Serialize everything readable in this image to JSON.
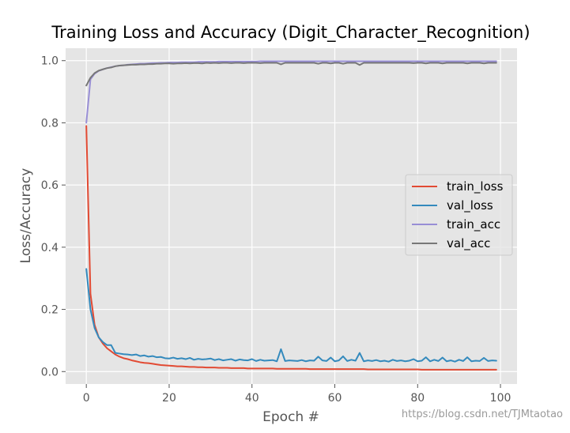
{
  "chart_data": {
    "type": "line",
    "title": "Training Loss and Accuracy (Digit_Character_Recognition)",
    "xlabel": "Epoch #",
    "ylabel": "Loss/Accuracy",
    "xlim": [
      -5,
      104
    ],
    "ylim": [
      -0.04,
      1.04
    ],
    "x_ticks": [
      0,
      20,
      40,
      60,
      80,
      100
    ],
    "y_ticks": [
      0.0,
      0.2,
      0.4,
      0.6,
      0.8,
      1.0
    ],
    "x_tick_labels": [
      "0",
      "20",
      "40",
      "60",
      "80",
      "100"
    ],
    "y_tick_labels": [
      "0.0",
      "0.2",
      "0.4",
      "0.6",
      "0.8",
      "1.0"
    ],
    "grid": true,
    "legend_position": "center-right",
    "style": {
      "background": "#e5e5e5",
      "grid": "#ffffff"
    },
    "x": [
      0,
      1,
      2,
      3,
      4,
      5,
      6,
      7,
      8,
      9,
      10,
      11,
      12,
      13,
      14,
      15,
      16,
      17,
      18,
      19,
      20,
      21,
      22,
      23,
      24,
      25,
      26,
      27,
      28,
      29,
      30,
      31,
      32,
      33,
      34,
      35,
      36,
      37,
      38,
      39,
      40,
      41,
      42,
      43,
      44,
      45,
      46,
      47,
      48,
      49,
      50,
      51,
      52,
      53,
      54,
      55,
      56,
      57,
      58,
      59,
      60,
      61,
      62,
      63,
      64,
      65,
      66,
      67,
      68,
      69,
      70,
      71,
      72,
      73,
      74,
      75,
      76,
      77,
      78,
      79,
      80,
      81,
      82,
      83,
      84,
      85,
      86,
      87,
      88,
      89,
      90,
      91,
      92,
      93,
      94,
      95,
      96,
      97,
      98,
      99
    ],
    "series": [
      {
        "name": "train_loss",
        "color": "#E24A33",
        "values": [
          0.79,
          0.25,
          0.15,
          0.11,
          0.09,
          0.075,
          0.065,
          0.055,
          0.048,
          0.043,
          0.04,
          0.036,
          0.033,
          0.03,
          0.028,
          0.027,
          0.025,
          0.023,
          0.021,
          0.02,
          0.019,
          0.018,
          0.017,
          0.017,
          0.016,
          0.015,
          0.015,
          0.014,
          0.014,
          0.013,
          0.013,
          0.013,
          0.012,
          0.012,
          0.012,
          0.011,
          0.011,
          0.011,
          0.011,
          0.01,
          0.01,
          0.01,
          0.01,
          0.01,
          0.01,
          0.01,
          0.009,
          0.009,
          0.009,
          0.009,
          0.009,
          0.009,
          0.009,
          0.009,
          0.008,
          0.008,
          0.008,
          0.008,
          0.008,
          0.008,
          0.008,
          0.008,
          0.008,
          0.008,
          0.008,
          0.008,
          0.008,
          0.008,
          0.007,
          0.007,
          0.007,
          0.007,
          0.007,
          0.007,
          0.007,
          0.007,
          0.007,
          0.007,
          0.007,
          0.007,
          0.007,
          0.006,
          0.006,
          0.006,
          0.006,
          0.006,
          0.006,
          0.006,
          0.006,
          0.006,
          0.006,
          0.006,
          0.006,
          0.006,
          0.006,
          0.006,
          0.006,
          0.006,
          0.006,
          0.006
        ]
      },
      {
        "name": "val_loss",
        "color": "#348ABD",
        "values": [
          0.33,
          0.2,
          0.14,
          0.11,
          0.095,
          0.085,
          0.085,
          0.06,
          0.058,
          0.056,
          0.055,
          0.053,
          0.055,
          0.05,
          0.052,
          0.048,
          0.05,
          0.046,
          0.047,
          0.043,
          0.042,
          0.045,
          0.041,
          0.043,
          0.04,
          0.044,
          0.038,
          0.041,
          0.039,
          0.04,
          0.042,
          0.037,
          0.04,
          0.036,
          0.038,
          0.04,
          0.035,
          0.039,
          0.037,
          0.036,
          0.04,
          0.034,
          0.038,
          0.035,
          0.036,
          0.037,
          0.033,
          0.072,
          0.034,
          0.036,
          0.035,
          0.034,
          0.037,
          0.033,
          0.036,
          0.035,
          0.048,
          0.036,
          0.034,
          0.045,
          0.033,
          0.036,
          0.049,
          0.034,
          0.038,
          0.035,
          0.06,
          0.033,
          0.036,
          0.034,
          0.037,
          0.033,
          0.035,
          0.032,
          0.038,
          0.034,
          0.036,
          0.033,
          0.035,
          0.04,
          0.033,
          0.035,
          0.046,
          0.033,
          0.038,
          0.034,
          0.045,
          0.033,
          0.036,
          0.032,
          0.038,
          0.034,
          0.046,
          0.033,
          0.035,
          0.034,
          0.044,
          0.034,
          0.036,
          0.035
        ]
      },
      {
        "name": "train_acc",
        "color": "#988ED5",
        "values": [
          0.8,
          0.94,
          0.958,
          0.967,
          0.972,
          0.976,
          0.979,
          0.982,
          0.984,
          0.985,
          0.987,
          0.988,
          0.989,
          0.99,
          0.99,
          0.991,
          0.992,
          0.992,
          0.993,
          0.993,
          0.994,
          0.994,
          0.994,
          0.995,
          0.995,
          0.995,
          0.995,
          0.996,
          0.996,
          0.996,
          0.996,
          0.996,
          0.997,
          0.997,
          0.997,
          0.997,
          0.997,
          0.997,
          0.997,
          0.997,
          0.997,
          0.997,
          0.998,
          0.998,
          0.998,
          0.998,
          0.998,
          0.998,
          0.998,
          0.998,
          0.998,
          0.998,
          0.998,
          0.998,
          0.998,
          0.998,
          0.998,
          0.998,
          0.998,
          0.998,
          0.998,
          0.998,
          0.998,
          0.998,
          0.998,
          0.998,
          0.998,
          0.998,
          0.998,
          0.998,
          0.998,
          0.998,
          0.998,
          0.998,
          0.998,
          0.998,
          0.998,
          0.998,
          0.998,
          0.998,
          0.998,
          0.998,
          0.998,
          0.998,
          0.998,
          0.998,
          0.998,
          0.998,
          0.998,
          0.998,
          0.998,
          0.998,
          0.998,
          0.998,
          0.998,
          0.998,
          0.998,
          0.998,
          0.998,
          0.998
        ]
      },
      {
        "name": "val_acc",
        "color": "#777777",
        "values": [
          0.92,
          0.945,
          0.96,
          0.968,
          0.972,
          0.976,
          0.978,
          0.982,
          0.984,
          0.985,
          0.986,
          0.987,
          0.987,
          0.988,
          0.988,
          0.989,
          0.989,
          0.99,
          0.99,
          0.991,
          0.991,
          0.99,
          0.991,
          0.991,
          0.992,
          0.991,
          0.992,
          0.992,
          0.991,
          0.993,
          0.992,
          0.993,
          0.992,
          0.993,
          0.993,
          0.992,
          0.993,
          0.993,
          0.992,
          0.993,
          0.993,
          0.993,
          0.992,
          0.993,
          0.993,
          0.993,
          0.993,
          0.988,
          0.993,
          0.993,
          0.993,
          0.993,
          0.993,
          0.993,
          0.993,
          0.993,
          0.99,
          0.993,
          0.993,
          0.991,
          0.993,
          0.993,
          0.99,
          0.993,
          0.993,
          0.993,
          0.986,
          0.993,
          0.993,
          0.993,
          0.993,
          0.993,
          0.993,
          0.993,
          0.993,
          0.993,
          0.993,
          0.993,
          0.993,
          0.992,
          0.993,
          0.993,
          0.991,
          0.993,
          0.993,
          0.993,
          0.991,
          0.993,
          0.993,
          0.993,
          0.993,
          0.993,
          0.991,
          0.993,
          0.993,
          0.993,
          0.991,
          0.993,
          0.993,
          0.993
        ]
      }
    ]
  },
  "watermark": "https://blog.csdn.net/TJMtaotao"
}
